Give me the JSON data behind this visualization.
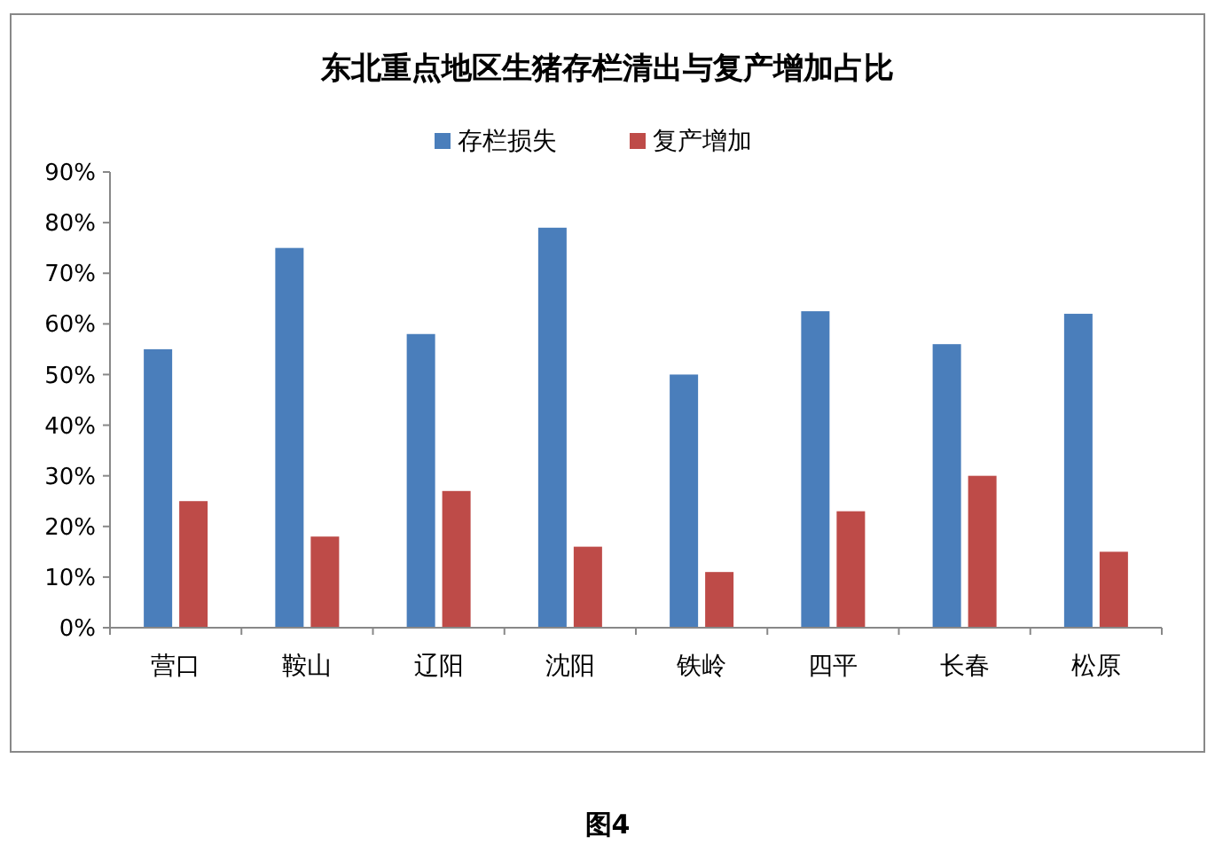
{
  "chart_data": {
    "type": "bar",
    "title": "东北重点地区生猪存栏清出与复产增加占比",
    "categories": [
      "营口",
      "鞍山",
      "辽阳",
      "沈阳",
      "铁岭",
      "四平",
      "长春",
      "松原"
    ],
    "series": [
      {
        "name": "存栏损失",
        "color": "#4a7ebb",
        "values": [
          55,
          75,
          58,
          79,
          50,
          62.5,
          56,
          62
        ]
      },
      {
        "name": "复产增加",
        "color": "#be4b48",
        "values": [
          25,
          18,
          27,
          16,
          11,
          23,
          30,
          15
        ]
      }
    ],
    "ylim": [
      0,
      90
    ],
    "yticks": [
      {
        "value": 0,
        "label": "0%"
      },
      {
        "value": 10,
        "label": "10%"
      },
      {
        "value": 20,
        "label": "20%"
      },
      {
        "value": 30,
        "label": "30%"
      },
      {
        "value": 40,
        "label": "40%"
      },
      {
        "value": 50,
        "label": "50%"
      },
      {
        "value": 60,
        "label": "60%"
      },
      {
        "value": 70,
        "label": "70%"
      },
      {
        "value": 80,
        "label": "80%"
      },
      {
        "value": 90,
        "label": "90%"
      }
    ],
    "grid": false,
    "legend": "top",
    "annotations": [
      "图4"
    ]
  }
}
